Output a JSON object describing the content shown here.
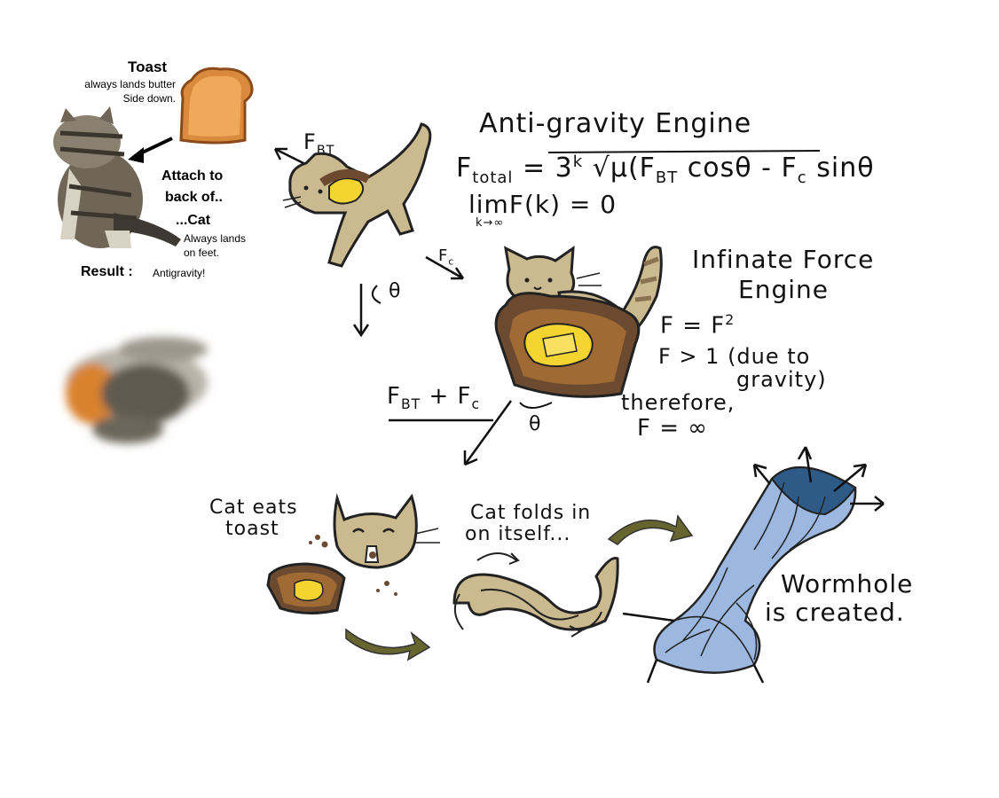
{
  "left_panel": {
    "toast_heading": "Toast",
    "toast_line1": "always lands butter",
    "toast_line2": "Side down.",
    "attach_line1": "Attach to",
    "attach_line2": "back of..",
    "cat_heading": "...Cat",
    "cat_line1": "Always lands",
    "cat_line2": "on feet.",
    "result_label": "Result :",
    "result_value": "Antigravity!"
  },
  "engine1": {
    "title": "Anti-gravity Engine",
    "f_bt": "F",
    "f_bt_sub": "BT",
    "f_c": "F",
    "f_c_sub": "c",
    "theta": "θ",
    "eq_lhs": "F",
    "eq_lhs_sub": "total",
    "eq_rhs_prefix": "= 3",
    "eq_rhs_exp": "k",
    "eq_rhs_body": "√μ(F",
    "eq_rhs_sub1": "BT",
    "eq_rhs_mid": "cosθ - F",
    "eq_rhs_sub2": "c",
    "eq_rhs_end": "sinθ",
    "limit_main": "limF(k) = 0",
    "limit_sub": "k→∞"
  },
  "engine2": {
    "title_line1": "Infinate Force",
    "title_line2": "Engine",
    "line1": "F = F",
    "line1_sup": "2",
    "line2": "F > 1 (due to",
    "line3": "gravity)",
    "line4": "therefore,",
    "line5": "F = ∞",
    "sum_label": "F",
    "sum_sub1": "BT",
    "sum_plus": " + F",
    "sum_sub2": "c",
    "theta": "θ"
  },
  "steps": {
    "step1_line1": "Cat eats",
    "step1_line2": "toast",
    "step2_line1": "Cat folds in",
    "step2_line2": "on itself...",
    "step3_line1": "Wormhole",
    "step3_line2": "is created."
  },
  "colors": {
    "cat_tan": "#cbb98f",
    "toast_brown": "#a06a34",
    "toast_dark": "#6b4a30",
    "butter": "#f3d430",
    "arrow_olive": "#66652f",
    "wormhole_blue": "#9db8e0",
    "wormhole_dark": "#2d5a86"
  }
}
